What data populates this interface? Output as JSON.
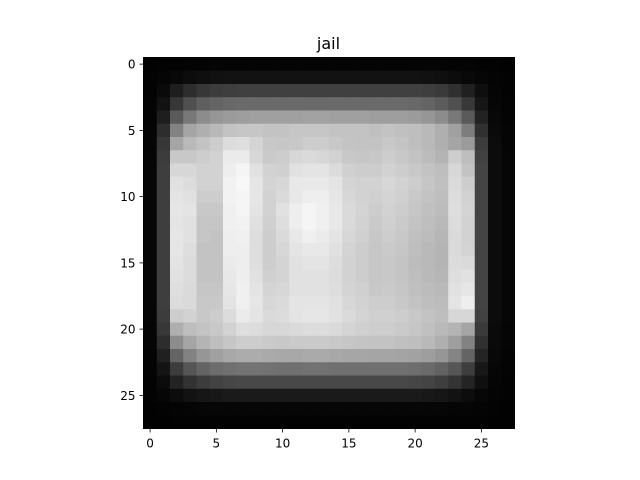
{
  "chart_data": {
    "type": "heatmap",
    "title": "jail",
    "xlabel": "",
    "ylabel": "",
    "colormap": "gray",
    "value_range": [
      0,
      255
    ],
    "xlim": [
      -0.5,
      27.5
    ],
    "ylim": [
      27.5,
      -0.5
    ],
    "x_ticks": [
      0,
      5,
      10,
      15,
      20,
      25
    ],
    "y_ticks": [
      0,
      5,
      10,
      15,
      20,
      25
    ],
    "x_tick_labels": [
      "0",
      "5",
      "10",
      "15",
      "20",
      "25"
    ],
    "y_tick_labels": [
      "0",
      "5",
      "10",
      "15",
      "20",
      "25"
    ],
    "grid": false,
    "legend": "none",
    "pixel_values": [
      [
        2,
        3,
        3,
        4,
        4,
        5,
        5,
        5,
        5,
        5,
        5,
        5,
        5,
        5,
        5,
        5,
        5,
        5,
        5,
        5,
        5,
        5,
        5,
        4,
        4,
        3,
        3,
        2
      ],
      [
        3,
        5,
        8,
        12,
        15,
        17,
        18,
        18,
        18,
        18,
        18,
        18,
        18,
        18,
        18,
        18,
        18,
        18,
        18,
        18,
        18,
        17,
        15,
        12,
        9,
        6,
        4,
        3
      ],
      [
        3,
        10,
        30,
        45,
        55,
        60,
        62,
        64,
        64,
        64,
        64,
        64,
        64,
        64,
        64,
        64,
        64,
        64,
        64,
        64,
        64,
        62,
        58,
        48,
        32,
        14,
        5,
        3
      ],
      [
        4,
        18,
        55,
        80,
        95,
        100,
        104,
        106,
        106,
        106,
        106,
        106,
        106,
        106,
        106,
        106,
        106,
        106,
        106,
        106,
        104,
        100,
        92,
        80,
        56,
        22,
        6,
        4
      ],
      [
        4,
        30,
        90,
        120,
        140,
        150,
        155,
        158,
        160,
        160,
        160,
        160,
        162,
        162,
        160,
        160,
        160,
        158,
        158,
        158,
        155,
        150,
        140,
        120,
        90,
        34,
        8,
        4
      ],
      [
        5,
        45,
        130,
        165,
        175,
        185,
        195,
        198,
        198,
        195,
        195,
        198,
        198,
        198,
        195,
        195,
        195,
        192,
        195,
        192,
        190,
        185,
        175,
        160,
        125,
        48,
        10,
        5
      ],
      [
        5,
        55,
        165,
        185,
        195,
        205,
        220,
        222,
        212,
        200,
        198,
        200,
        205,
        205,
        200,
        196,
        195,
        195,
        200,
        196,
        190,
        185,
        175,
        165,
        155,
        60,
        12,
        5
      ],
      [
        6,
        60,
        200,
        200,
        205,
        210,
        235,
        235,
        215,
        202,
        205,
        215,
        218,
        215,
        210,
        200,
        198,
        200,
        205,
        200,
        195,
        188,
        180,
        205,
        190,
        65,
        12,
        6
      ],
      [
        6,
        62,
        215,
        215,
        210,
        210,
        238,
        245,
        225,
        210,
        208,
        225,
        228,
        228,
        220,
        208,
        205,
        205,
        210,
        205,
        200,
        195,
        190,
        215,
        195,
        68,
        12,
        6
      ],
      [
        6,
        62,
        225,
        220,
        210,
        210,
        242,
        248,
        230,
        212,
        215,
        232,
        232,
        232,
        228,
        212,
        210,
        210,
        215,
        210,
        205,
        198,
        192,
        218,
        205,
        68,
        12,
        6
      ],
      [
        6,
        62,
        228,
        225,
        205,
        205,
        242,
        245,
        230,
        210,
        218,
        232,
        238,
        238,
        230,
        215,
        210,
        208,
        212,
        208,
        200,
        195,
        190,
        220,
        210,
        68,
        12,
        6
      ],
      [
        6,
        62,
        230,
        228,
        200,
        200,
        240,
        245,
        228,
        210,
        225,
        238,
        245,
        240,
        232,
        218,
        212,
        205,
        210,
        205,
        198,
        192,
        188,
        222,
        212,
        68,
        12,
        6
      ],
      [
        6,
        62,
        228,
        225,
        198,
        198,
        240,
        242,
        225,
        208,
        222,
        238,
        245,
        240,
        232,
        218,
        210,
        202,
        208,
        202,
        195,
        190,
        185,
        220,
        210,
        68,
        12,
        6
      ],
      [
        6,
        62,
        230,
        225,
        198,
        195,
        238,
        240,
        222,
        205,
        218,
        232,
        240,
        235,
        228,
        215,
        208,
        200,
        205,
        200,
        192,
        188,
        182,
        218,
        210,
        68,
        12,
        6
      ],
      [
        6,
        62,
        230,
        222,
        195,
        195,
        238,
        238,
        222,
        205,
        215,
        228,
        232,
        232,
        225,
        212,
        205,
        198,
        202,
        198,
        190,
        185,
        180,
        218,
        212,
        68,
        12,
        6
      ],
      [
        6,
        62,
        228,
        220,
        195,
        195,
        235,
        238,
        222,
        205,
        212,
        225,
        228,
        228,
        222,
        210,
        205,
        198,
        200,
        196,
        188,
        185,
        180,
        220,
        218,
        68,
        12,
        6
      ],
      [
        6,
        62,
        225,
        220,
        195,
        195,
        232,
        238,
        225,
        208,
        212,
        225,
        225,
        225,
        220,
        210,
        205,
        198,
        200,
        196,
        190,
        185,
        182,
        222,
        225,
        68,
        12,
        6
      ],
      [
        6,
        62,
        222,
        218,
        198,
        198,
        230,
        240,
        228,
        212,
        215,
        225,
        225,
        225,
        222,
        212,
        208,
        200,
        202,
        198,
        192,
        188,
        185,
        225,
        230,
        68,
        12,
        6
      ],
      [
        6,
        62,
        220,
        218,
        200,
        200,
        228,
        240,
        230,
        215,
        218,
        228,
        228,
        228,
        225,
        215,
        210,
        205,
        205,
        200,
        195,
        190,
        188,
        228,
        238,
        68,
        12,
        6
      ],
      [
        6,
        60,
        205,
        210,
        200,
        205,
        220,
        235,
        228,
        218,
        220,
        228,
        230,
        230,
        225,
        218,
        212,
        208,
        208,
        205,
        200,
        195,
        190,
        215,
        215,
        66,
        12,
        6
      ],
      [
        5,
        55,
        175,
        190,
        195,
        200,
        210,
        222,
        220,
        215,
        215,
        218,
        220,
        220,
        218,
        212,
        208,
        205,
        205,
        202,
        198,
        192,
        185,
        180,
        165,
        58,
        10,
        5
      ],
      [
        5,
        45,
        140,
        165,
        180,
        190,
        198,
        205,
        205,
        202,
        200,
        202,
        202,
        202,
        200,
        198,
        196,
        195,
        195,
        192,
        190,
        185,
        175,
        158,
        130,
        48,
        10,
        5
      ],
      [
        4,
        32,
        100,
        130,
        150,
        160,
        168,
        172,
        172,
        170,
        168,
        168,
        170,
        170,
        168,
        166,
        166,
        165,
        165,
        164,
        162,
        158,
        150,
        132,
        100,
        36,
        8,
        4
      ],
      [
        4,
        20,
        60,
        85,
        100,
        108,
        112,
        115,
        115,
        114,
        112,
        112,
        114,
        114,
        112,
        112,
        112,
        112,
        112,
        112,
        110,
        106,
        98,
        86,
        62,
        24,
        6,
        4
      ],
      [
        3,
        12,
        35,
        50,
        60,
        66,
        70,
        72,
        72,
        72,
        72,
        72,
        72,
        72,
        72,
        72,
        72,
        72,
        72,
        72,
        70,
        68,
        62,
        52,
        36,
        15,
        5,
        3
      ],
      [
        3,
        6,
        12,
        18,
        22,
        24,
        26,
        26,
        26,
        26,
        26,
        26,
        26,
        26,
        26,
        26,
        26,
        26,
        26,
        26,
        26,
        24,
        22,
        18,
        13,
        7,
        4,
        3
      ],
      [
        2,
        3,
        4,
        5,
        6,
        6,
        6,
        6,
        6,
        6,
        6,
        6,
        6,
        6,
        6,
        6,
        6,
        6,
        6,
        6,
        6,
        6,
        6,
        5,
        5,
        4,
        3,
        2
      ],
      [
        2,
        2,
        3,
        3,
        3,
        3,
        3,
        3,
        3,
        3,
        3,
        3,
        3,
        3,
        3,
        3,
        3,
        3,
        3,
        3,
        3,
        3,
        3,
        3,
        3,
        3,
        2,
        2
      ]
    ]
  }
}
